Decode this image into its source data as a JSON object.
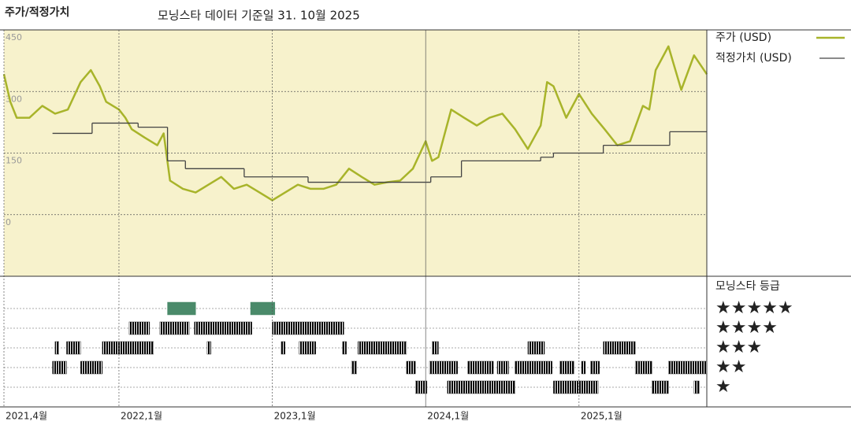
{
  "chart_data": [
    {
      "type": "line",
      "title": "주가/적정가치",
      "subtitle": "모닝스타 데이터 기준일 31. 10월 2025",
      "xlim": [
        0,
        55
      ],
      "ylim": [
        -150,
        450
      ],
      "yticks": [
        0,
        150,
        300,
        450
      ],
      "grid": true,
      "background": "#f7f2cc",
      "legend": "right",
      "series": [
        {
          "name": "주가 (USD)",
          "color": "#a8b42a",
          "step": false,
          "x": [
            0,
            0.5,
            1,
            2,
            3,
            4,
            5,
            6,
            6.8,
            7.5,
            8,
            9,
            9.5,
            10,
            11,
            12,
            12.5,
            13,
            14,
            15,
            16,
            17,
            18,
            19,
            20,
            21,
            22,
            23,
            24,
            25,
            26,
            27,
            28,
            29,
            30,
            31,
            32,
            33,
            33.5,
            34,
            35,
            36,
            37,
            38,
            39,
            40,
            41,
            42,
            42.5,
            43,
            44,
            45,
            46,
            47,
            48,
            49,
            50,
            50.5,
            51,
            52,
            53,
            54,
            55
          ],
          "values": [
            342,
            275,
            236,
            236,
            265,
            246,
            256,
            323,
            352,
            313,
            275,
            256,
            236,
            208,
            188,
            169,
            198,
            83,
            63,
            54,
            73,
            92,
            63,
            73,
            54,
            35,
            54,
            73,
            63,
            63,
            73,
            112,
            92,
            73,
            79,
            83,
            112,
            179,
            131,
            140,
            256,
            236,
            217,
            236,
            246,
            208,
            160,
            217,
            323,
            313,
            236,
            294,
            246,
            208,
            169,
            179,
            265,
            256,
            352,
            410,
            304,
            388,
            342
          ]
        },
        {
          "name": "적정가치 (USD)",
          "color": "#444444",
          "step": true,
          "x": [
            3.8,
            6.9,
            10.5,
            12.8,
            14.2,
            18.8,
            23.8,
            33.4,
            35.8,
            42,
            43,
            46.9,
            52.1
          ],
          "values": [
            198,
            223,
            213,
            131,
            112,
            92,
            79,
            92,
            131,
            140,
            150,
            169,
            202
          ]
        }
      ]
    },
    {
      "type": "timeline",
      "title": "모닝스타 등급",
      "xlim": [
        0,
        55
      ],
      "xticks": [
        {
          "value": 0,
          "label": "2021,4월"
        },
        {
          "value": 9,
          "label": "2022,1월"
        },
        {
          "value": 21,
          "label": "2023,1월"
        },
        {
          "value": 33,
          "label": "2024,1월"
        },
        {
          "value": 45,
          "label": "2025,1월"
        }
      ],
      "series": [
        {
          "name": "★★★★★",
          "color": "#4a8a6a",
          "periods": [
            [
              12.8,
              15.0
            ],
            [
              19.3,
              21.2
            ]
          ]
        },
        {
          "name": "★★★★",
          "color": "#333333",
          "periods": [
            [
              9.8,
              11.4
            ],
            [
              12.2,
              14.5
            ],
            [
              14.9,
              19.4
            ],
            [
              21.0,
              26.6
            ]
          ]
        },
        {
          "name": "★★★",
          "color": "#333333",
          "periods": [
            [
              4.0,
              4.3
            ],
            [
              4.9,
              6.0
            ],
            [
              7.7,
              11.7
            ],
            [
              15.9,
              16.2
            ],
            [
              21.7,
              22.0
            ],
            [
              23.1,
              24.4
            ],
            [
              26.5,
              26.8
            ],
            [
              27.7,
              31.5
            ],
            [
              33.5,
              34.0
            ],
            [
              41.0,
              42.3
            ],
            [
              46.9,
              49.4
            ]
          ]
        },
        {
          "name": "★★",
          "color": "#333333",
          "periods": [
            [
              3.8,
              4.9
            ],
            [
              6.0,
              7.7
            ],
            [
              27.2,
              27.6
            ],
            [
              31.5,
              32.2
            ],
            [
              33.3,
              35.5
            ],
            [
              36.3,
              38.3
            ],
            [
              38.6,
              39.5
            ],
            [
              40.0,
              42.9
            ],
            [
              43.5,
              44.6
            ],
            [
              45.2,
              45.5
            ],
            [
              45.9,
              46.6
            ],
            [
              49.4,
              50.7
            ],
            [
              52.0,
              55.0
            ]
          ]
        },
        {
          "name": "★",
          "color": "#333333",
          "periods": [
            [
              32.2,
              33.1
            ],
            [
              34.7,
              40.0
            ],
            [
              43.0,
              46.5
            ],
            [
              50.7,
              52.0
            ],
            [
              54.0,
              54.4
            ]
          ]
        }
      ]
    }
  ]
}
